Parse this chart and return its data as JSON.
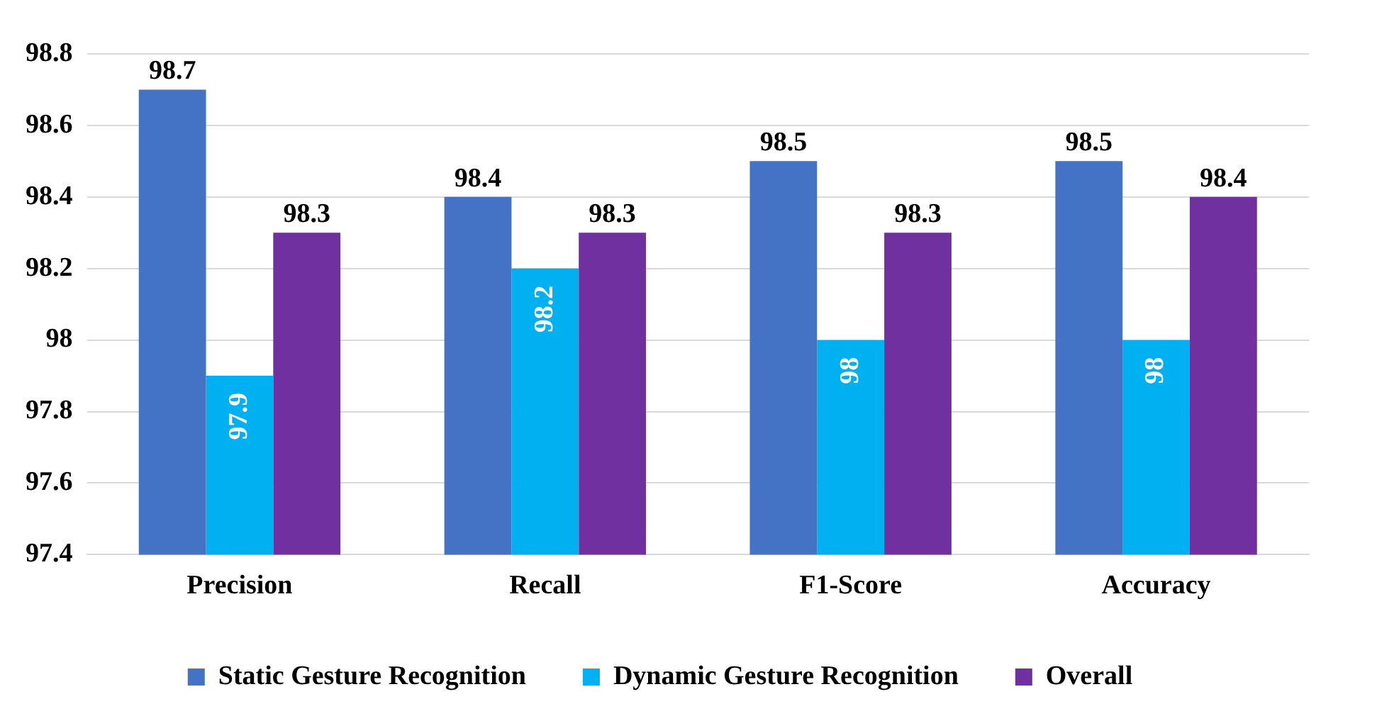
{
  "chart_data": {
    "type": "bar",
    "categories": [
      "Precision",
      "Recall",
      "F1-Score",
      "Accuracy"
    ],
    "series": [
      {
        "name": "Static Gesture Recognition",
        "color": "#4472c4",
        "values": [
          98.7,
          98.4,
          98.5,
          98.5
        ]
      },
      {
        "name": "Dynamic Gesture Recognition",
        "color": "#00b0f0",
        "values": [
          97.9,
          98.2,
          98,
          98
        ]
      },
      {
        "name": "Overall",
        "color": "#7030a0",
        "values": [
          98.3,
          98.3,
          98.3,
          98.4
        ]
      }
    ],
    "ylim": [
      97.4,
      98.8
    ],
    "yticks": [
      97.4,
      97.6,
      97.8,
      98,
      98.2,
      98.4,
      98.6,
      98.8
    ],
    "grid": "y",
    "legend": "bottom",
    "data_labels": true
  }
}
